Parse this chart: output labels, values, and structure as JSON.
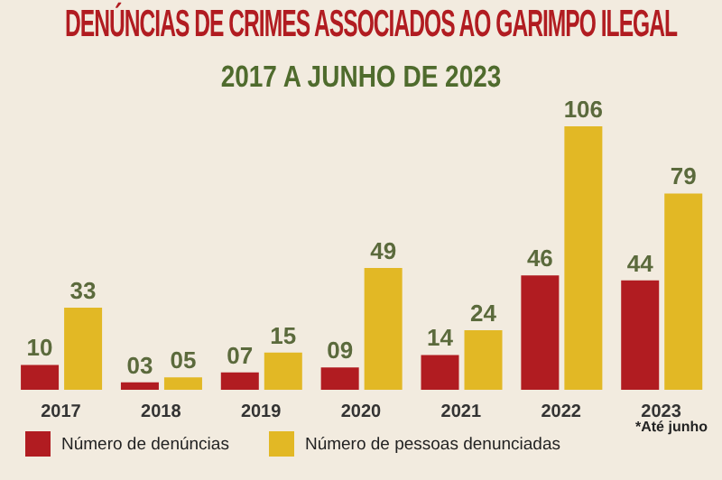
{
  "chart_data": {
    "type": "bar",
    "title": "DENÚNCIAS DE CRIMES ASSOCIADOS AO GARIMPO ILEGAL",
    "subtitle": "2017 A JUNHO DE 2023",
    "categories": [
      "2017",
      "2018",
      "2019",
      "2020",
      "2021",
      "2022",
      "2023"
    ],
    "series": [
      {
        "name": "Número de denúncias",
        "color": "#b11c21",
        "values": [
          10,
          3,
          7,
          9,
          14,
          46,
          44
        ],
        "value_labels": [
          "10",
          "03",
          "07",
          "09",
          "14",
          "46",
          "44"
        ]
      },
      {
        "name": "Número de pessoas denunciadas",
        "color": "#e2b825",
        "values": [
          33,
          5,
          15,
          49,
          24,
          106,
          79
        ],
        "value_labels": [
          "33",
          "05",
          "15",
          "49",
          "24",
          "106",
          "79"
        ]
      }
    ],
    "legend": "bottom left",
    "annotations": [
      "*Até junho"
    ]
  }
}
